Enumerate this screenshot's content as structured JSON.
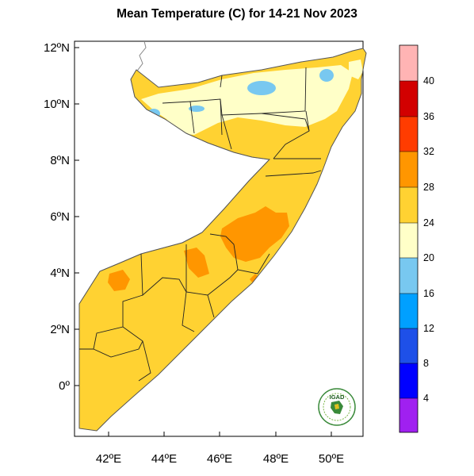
{
  "title": "Mean Temperature (C) for 14-21 Nov 2023",
  "map": {
    "region": "Somalia",
    "lat_ticks": [
      "12ºN",
      "10ºN",
      "8ºN",
      "6ºN",
      "4ºN",
      "2ºN",
      "0º"
    ],
    "lon_ticks": [
      "42ºE",
      "44ºE",
      "46ºE",
      "48ºE",
      "50ºE"
    ],
    "lat_range": [
      -1.7,
      12.3
    ],
    "lon_range": [
      40.9,
      51.6
    ]
  },
  "colorbar": {
    "levels": [
      "4",
      "8",
      "12",
      "16",
      "20",
      "24",
      "28",
      "32",
      "36",
      "40"
    ],
    "colors": [
      "#a020f0",
      "#0000ff",
      "#1e50e8",
      "#00a0ff",
      "#78c8f0",
      "#ffffc8",
      "#ffd232",
      "#ff9600",
      "#ff3c00",
      "#d20000",
      "#ffb4b4"
    ],
    "units": "C"
  },
  "logo": {
    "text": "IGAD"
  }
}
